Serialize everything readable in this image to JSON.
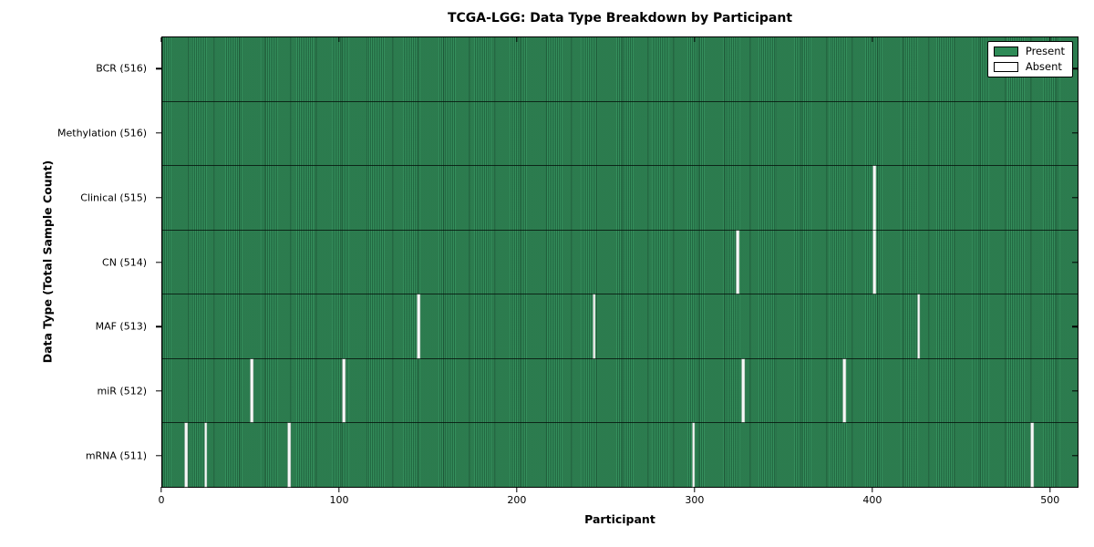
{
  "chart_data": {
    "type": "heatmap",
    "title": "TCGA-LGG: Data Type Breakdown by Participant",
    "xlabel": "Participant",
    "ylabel": "Data Type (Total Sample Count)",
    "total_participants": 516,
    "xlim": [
      0,
      516
    ],
    "x_ticks": [
      0,
      100,
      200,
      300,
      400,
      500
    ],
    "grid": false,
    "legend_position": "upper right",
    "legend": [
      {
        "label": "Present",
        "color": "#2e8b57"
      },
      {
        "label": "Absent",
        "color": "#ffffff"
      }
    ],
    "colors": {
      "present": "#2e8b57",
      "absent": "#ffffff",
      "row_divider": "#0a1f14"
    },
    "rows": [
      {
        "label": "BCR (516)",
        "name": "BCR",
        "present_count": 516,
        "absent_participants": []
      },
      {
        "label": "Methylation (516)",
        "name": "Methylation",
        "present_count": 516,
        "absent_participants": []
      },
      {
        "label": "Clinical (515)",
        "name": "Clinical",
        "present_count": 515,
        "absent_participants": [
          401
        ]
      },
      {
        "label": "CN (514)",
        "name": "CN",
        "present_count": 514,
        "absent_participants": [
          324,
          401
        ]
      },
      {
        "label": "MAF (513)",
        "name": "MAF",
        "present_count": 513,
        "absent_participants": [
          144,
          243,
          426
        ]
      },
      {
        "label": "miR (512)",
        "name": "miR",
        "present_count": 512,
        "absent_participants": [
          50,
          102,
          327,
          384
        ]
      },
      {
        "label": "mRNA (511)",
        "name": "mRNA",
        "present_count": 511,
        "absent_participants": [
          13,
          24,
          71,
          299,
          490
        ]
      }
    ]
  }
}
